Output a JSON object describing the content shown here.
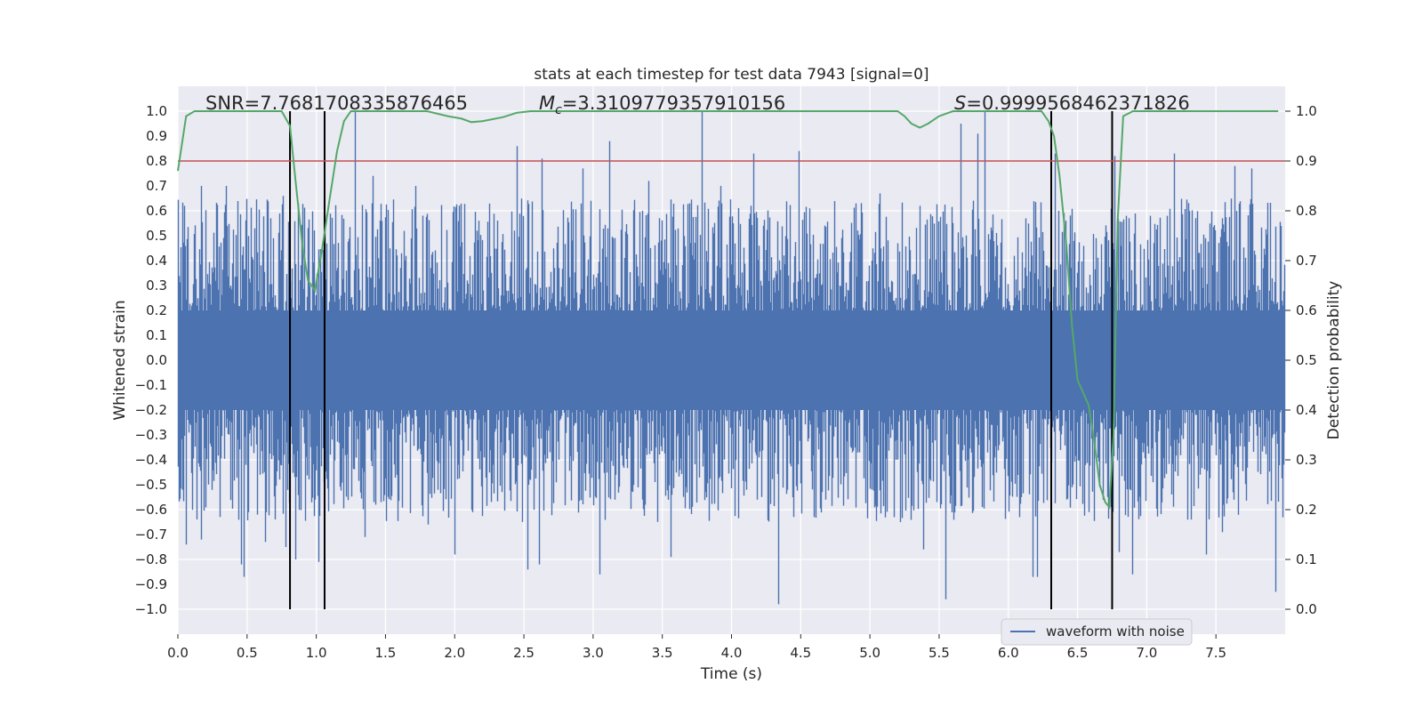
{
  "chart_data": {
    "type": "line",
    "title": "stats at each timestep for test data 7943 [signal=0]",
    "xlabel": "Time (s)",
    "ylabel_left": "Whitened strain",
    "ylabel_right": "Detection probability",
    "xlim": [
      0.0,
      8.0
    ],
    "ylim_left": [
      -1.1,
      1.1
    ],
    "ylim_right": [
      -0.05,
      1.05
    ],
    "x_ticks": [
      "0.0",
      "0.5",
      "1.0",
      "1.5",
      "2.0",
      "2.5",
      "3.0",
      "3.5",
      "4.0",
      "4.5",
      "5.0",
      "5.5",
      "6.0",
      "6.5",
      "7.0",
      "7.5"
    ],
    "y_left_ticks": [
      "1.0",
      "0.9",
      "0.8",
      "0.7",
      "0.6",
      "0.5",
      "0.4",
      "0.3",
      "0.2",
      "0.1",
      "0.0",
      "−0.1",
      "−0.2",
      "−0.3",
      "−0.4",
      "−0.5",
      "−0.6",
      "−0.7",
      "−0.8",
      "−0.9",
      "−1.0"
    ],
    "y_right_ticks": [
      "1.0",
      "0.9",
      "0.8",
      "0.7",
      "0.6",
      "0.5",
      "0.4",
      "0.3",
      "0.2",
      "0.1",
      "0.0"
    ],
    "annotations": {
      "snr": "SNR=7.7681708335876465",
      "mc_symbol": "M",
      "mc_sub": "c",
      "mc_value": "=3.3109779357910156",
      "s_symbol": "S",
      "s_value": "=0.9999568462371826"
    },
    "threshold": {
      "axis": "left",
      "value": 0.8,
      "color": "#c44e52"
    },
    "vertical_markers": [
      0.81,
      1.06,
      6.31,
      6.75
    ],
    "series": [
      {
        "name": "waveform with noise",
        "axis": "left",
        "color": "#4c72b0",
        "duration": 8.0,
        "sample_rate": 4096,
        "core_amplitude": 0.2,
        "peaks": [
          {
            "t": 0.05,
            "v": 0.62
          },
          {
            "t": 0.06,
            "v": -0.74
          },
          {
            "t": 0.17,
            "v": 0.7
          },
          {
            "t": 0.17,
            "v": -0.72
          },
          {
            "t": 0.35,
            "v": 0.7
          },
          {
            "t": 0.46,
            "v": -0.82
          },
          {
            "t": 0.48,
            "v": -0.87
          },
          {
            "t": 0.63,
            "v": -0.73
          },
          {
            "t": 0.76,
            "v": 0.66
          },
          {
            "t": 0.78,
            "v": -0.75
          },
          {
            "t": 0.85,
            "v": -0.8
          },
          {
            "t": 0.87,
            "v": 0.63
          },
          {
            "t": 1.02,
            "v": -0.81
          },
          {
            "t": 1.28,
            "v": 1.0
          },
          {
            "t": 1.35,
            "v": -0.71
          },
          {
            "t": 1.41,
            "v": 0.74
          },
          {
            "t": 1.72,
            "v": 0.7
          },
          {
            "t": 1.81,
            "v": -0.66
          },
          {
            "t": 2.0,
            "v": -0.78
          },
          {
            "t": 2.45,
            "v": 0.86
          },
          {
            "t": 2.53,
            "v": -0.84
          },
          {
            "t": 2.61,
            "v": -0.82
          },
          {
            "t": 2.63,
            "v": 0.81
          },
          {
            "t": 2.93,
            "v": 0.77
          },
          {
            "t": 3.05,
            "v": -0.86
          },
          {
            "t": 3.12,
            "v": 0.88
          },
          {
            "t": 3.4,
            "v": 0.72
          },
          {
            "t": 3.56,
            "v": -0.79
          },
          {
            "t": 3.79,
            "v": 1.0
          },
          {
            "t": 3.92,
            "v": 0.7
          },
          {
            "t": 4.16,
            "v": 0.83
          },
          {
            "t": 4.34,
            "v": -0.98
          },
          {
            "t": 4.49,
            "v": 0.84
          },
          {
            "t": 4.6,
            "v": -0.63
          },
          {
            "t": 4.9,
            "v": 0.63
          },
          {
            "t": 5.07,
            "v": 0.67
          },
          {
            "t": 5.22,
            "v": -0.65
          },
          {
            "t": 5.36,
            "v": 0.62
          },
          {
            "t": 5.39,
            "v": -0.76
          },
          {
            "t": 5.55,
            "v": -0.96
          },
          {
            "t": 5.66,
            "v": 0.95
          },
          {
            "t": 5.78,
            "v": 0.91
          },
          {
            "t": 5.83,
            "v": 1.0
          },
          {
            "t": 6.18,
            "v": -0.87
          },
          {
            "t": 6.21,
            "v": -0.87
          },
          {
            "t": 6.34,
            "v": 0.83
          },
          {
            "t": 6.58,
            "v": -0.61
          },
          {
            "t": 6.77,
            "v": 0.82
          },
          {
            "t": 6.8,
            "v": -0.77
          },
          {
            "t": 6.9,
            "v": -0.86
          },
          {
            "t": 7.2,
            "v": 0.83
          },
          {
            "t": 7.43,
            "v": -0.78
          },
          {
            "t": 7.55,
            "v": -0.69
          },
          {
            "t": 7.64,
            "v": 0.78
          },
          {
            "t": 7.76,
            "v": 0.77
          },
          {
            "t": 7.93,
            "v": -0.93
          }
        ]
      },
      {
        "name": "Detection probability",
        "axis": "right",
        "color": "#55a868",
        "points": [
          [
            0.0,
            0.88
          ],
          [
            0.06,
            0.99
          ],
          [
            0.12,
            1.0
          ],
          [
            0.75,
            1.0
          ],
          [
            0.81,
            0.97
          ],
          [
            0.85,
            0.86
          ],
          [
            0.9,
            0.73
          ],
          [
            0.94,
            0.66
          ],
          [
            0.99,
            0.64
          ],
          [
            1.04,
            0.72
          ],
          [
            1.1,
            0.83
          ],
          [
            1.15,
            0.92
          ],
          [
            1.2,
            0.98
          ],
          [
            1.25,
            1.0
          ],
          [
            1.8,
            1.0
          ],
          [
            1.95,
            0.99
          ],
          [
            2.05,
            0.985
          ],
          [
            2.12,
            0.978
          ],
          [
            2.2,
            0.98
          ],
          [
            2.35,
            0.988
          ],
          [
            2.45,
            0.997
          ],
          [
            2.55,
            1.0
          ],
          [
            5.2,
            1.0
          ],
          [
            5.25,
            0.99
          ],
          [
            5.3,
            0.975
          ],
          [
            5.36,
            0.967
          ],
          [
            5.42,
            0.975
          ],
          [
            5.5,
            0.99
          ],
          [
            5.6,
            1.0
          ],
          [
            6.24,
            1.0
          ],
          [
            6.29,
            0.98
          ],
          [
            6.33,
            0.95
          ],
          [
            6.37,
            0.87
          ],
          [
            6.42,
            0.73
          ],
          [
            6.46,
            0.57
          ],
          [
            6.5,
            0.46
          ],
          [
            6.58,
            0.41
          ],
          [
            6.62,
            0.34
          ],
          [
            6.66,
            0.25
          ],
          [
            6.7,
            0.215
          ],
          [
            6.73,
            0.205
          ],
          [
            6.76,
            0.35
          ],
          [
            6.79,
            0.78
          ],
          [
            6.83,
            0.99
          ],
          [
            6.9,
            1.0
          ],
          [
            7.95,
            1.0
          ]
        ]
      }
    ],
    "legend": {
      "entries": [
        "waveform with noise"
      ],
      "placement": "lower-right"
    },
    "grid": true
  }
}
